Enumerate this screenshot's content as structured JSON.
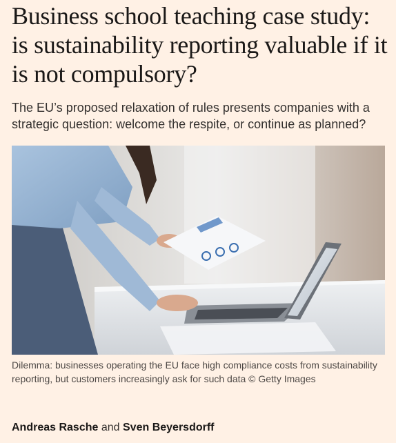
{
  "article": {
    "headline": "Business school teaching case study: is sustainability reporting valuable if it is not compulsory?",
    "standfirst": "The EU’s proposed relaxation of rules presents companies with a strategic question: welcome the respite, or continue as planned?",
    "image": {
      "caption": "Dilemma: businesses operating the EU face high compliance costs from sustainability reporting, but customers increasingly ask for such data © Getty Images"
    },
    "byline": {
      "authors": [
        "Andreas Rasche",
        "Sven Beyersdorff"
      ],
      "separator": "and"
    }
  },
  "colors": {
    "page_background": "#FFF1E5",
    "headline_text": "#1A1817",
    "body_text": "#33302E",
    "caption_text": "#4D4845"
  }
}
